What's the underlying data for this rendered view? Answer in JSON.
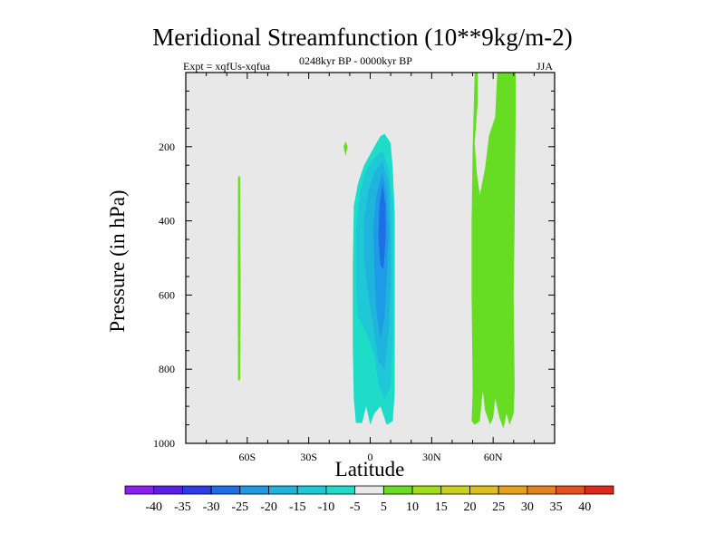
{
  "chart_data": {
    "type": "contour",
    "title": "Meridional Streamfunction (10**9kg/m-2)",
    "left_subtitle": "Expt = xqfUs-xqfua",
    "center_subtitle": "0248kyr BP - 0000kyr BP",
    "right_subtitle": "JJA",
    "xlabel": "Latitude",
    "ylabel": "Pressure (in hPa)",
    "xlim": [
      -90,
      90
    ],
    "ylim": [
      1000,
      0
    ],
    "x_ticks": [
      -60,
      -30,
      0,
      30,
      60
    ],
    "x_tick_labels": [
      "60S",
      "30S",
      "0",
      "30N",
      "60N"
    ],
    "y_ticks": [
      200,
      400,
      600,
      800,
      1000
    ],
    "y_tick_labels": [
      "200",
      "400",
      "600",
      "800",
      "1000"
    ],
    "background_color": "#e8e8e8",
    "colorbar": {
      "labels": [
        "-40",
        "-35",
        "-30",
        "-25",
        "-20",
        "-15",
        "-10",
        "-5",
        "5",
        "10",
        "15",
        "20",
        "25",
        "30",
        "35",
        "40"
      ],
      "colors": [
        "#8c1ef0",
        "#5a1ee6",
        "#2d3ce6",
        "#1e6ee6",
        "#1e9be6",
        "#1eb4dc",
        "#1ec8d7",
        "#1edcc8",
        "#e8e8e8",
        "#66dd22",
        "#a0dc1e",
        "#c8d21e",
        "#dcbe1e",
        "#e6a01e",
        "#e6821e",
        "#e6501e",
        "#dc281e"
      ]
    },
    "regions": [
      {
        "name": "weak-positive-60S",
        "level": 5,
        "color": "#66dd22",
        "points": [
          [
            -64.5,
            280
          ],
          [
            -63.5,
            280
          ],
          [
            -63.2,
            600
          ],
          [
            -63.5,
            830
          ],
          [
            -64.5,
            830
          ],
          [
            -64.6,
            600
          ]
        ]
      },
      {
        "name": "small-positive-12S",
        "level": 5,
        "color": "#66dd22",
        "points": [
          [
            -12,
            185
          ],
          [
            -11,
            200
          ],
          [
            -12,
            225
          ],
          [
            -13,
            200
          ]
        ]
      },
      {
        "name": "negative-cell-outer",
        "level": -5,
        "color": "#1edcc8",
        "points": [
          [
            7,
            165
          ],
          [
            10,
            190
          ],
          [
            11,
            260
          ],
          [
            12,
            380
          ],
          [
            12,
            600
          ],
          [
            12,
            860
          ],
          [
            11,
            940
          ],
          [
            8,
            950
          ],
          [
            5,
            900
          ],
          [
            2,
            920
          ],
          [
            0,
            950
          ],
          [
            -2,
            900
          ],
          [
            -4,
            945
          ],
          [
            -7,
            945
          ],
          [
            -8,
            880
          ],
          [
            -8.5,
            740
          ],
          [
            -8.5,
            520
          ],
          [
            -8,
            360
          ],
          [
            -6,
            300
          ],
          [
            -3,
            250
          ],
          [
            0,
            220
          ],
          [
            3,
            190
          ],
          [
            5,
            172
          ]
        ]
      },
      {
        "name": "negative-cell-mid",
        "level": -10,
        "color": "#1ec8d7",
        "points": [
          [
            6,
            210
          ],
          [
            9,
            260
          ],
          [
            11,
            360
          ],
          [
            11,
            520
          ],
          [
            11,
            700
          ],
          [
            10,
            850
          ],
          [
            7,
            880
          ],
          [
            4,
            840
          ],
          [
            2,
            760
          ],
          [
            -2,
            700
          ],
          [
            -6,
            660
          ],
          [
            -7,
            560
          ],
          [
            -7,
            430
          ],
          [
            -5,
            320
          ],
          [
            -2,
            265
          ],
          [
            2,
            230
          ]
        ]
      },
      {
        "name": "negative-cell-inner",
        "level": -15,
        "color": "#1eb4dc",
        "points": [
          [
            6,
            240
          ],
          [
            9,
            300
          ],
          [
            10,
            420
          ],
          [
            10,
            560
          ],
          [
            9,
            700
          ],
          [
            7,
            800
          ],
          [
            4,
            780
          ],
          [
            2,
            700
          ],
          [
            -1,
            600
          ],
          [
            -3,
            500
          ],
          [
            -3,
            400
          ],
          [
            -1,
            320
          ],
          [
            2,
            270
          ]
        ]
      },
      {
        "name": "negative-cell-core",
        "level": -20,
        "color": "#1e9be6",
        "points": [
          [
            6,
            270
          ],
          [
            8,
            330
          ],
          [
            9,
            430
          ],
          [
            8,
            560
          ],
          [
            7,
            660
          ],
          [
            5,
            720
          ],
          [
            3,
            640
          ],
          [
            2,
            520
          ],
          [
            1.5,
            420
          ],
          [
            3,
            330
          ]
        ]
      },
      {
        "name": "negative-cell-max",
        "level": -25,
        "color": "#1e6ee6",
        "points": [
          [
            6,
            300
          ],
          [
            7.5,
            360
          ],
          [
            7.5,
            450
          ],
          [
            6.5,
            530
          ],
          [
            5,
            520
          ],
          [
            4,
            440
          ],
          [
            4.5,
            360
          ]
        ]
      },
      {
        "name": "positive-cell-60N",
        "level": 5,
        "color": "#66dd22",
        "points": [
          [
            51,
            0
          ],
          [
            52.5,
            0
          ],
          [
            52.5,
            80
          ],
          [
            51,
            190
          ],
          [
            52,
            270
          ],
          [
            53.5,
            330
          ],
          [
            56,
            260
          ],
          [
            58,
            170
          ],
          [
            61,
            120
          ],
          [
            62,
            0
          ],
          [
            71,
            0
          ],
          [
            71,
            120
          ],
          [
            70.5,
            400
          ],
          [
            70,
            600
          ],
          [
            70.5,
            850
          ],
          [
            70,
            920
          ],
          [
            68,
            950
          ],
          [
            66.5,
            920
          ],
          [
            65,
            960
          ],
          [
            63,
            930
          ],
          [
            61,
            880
          ],
          [
            60,
            930
          ],
          [
            58.5,
            950
          ],
          [
            56,
            910
          ],
          [
            55,
            860
          ],
          [
            54.5,
            880
          ],
          [
            53.5,
            940
          ],
          [
            51,
            950
          ],
          [
            49.5,
            940
          ],
          [
            50,
            860
          ],
          [
            49.5,
            600
          ],
          [
            49.5,
            400
          ],
          [
            50,
            200
          ]
        ]
      }
    ]
  }
}
